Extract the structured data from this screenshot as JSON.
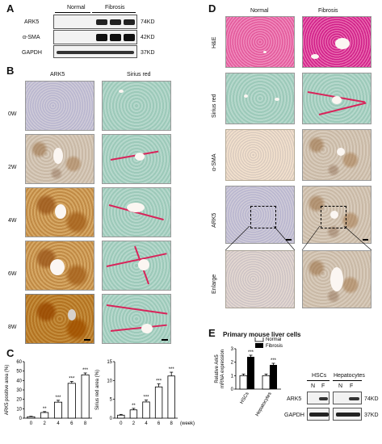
{
  "panels": {
    "A": "A",
    "B": "B",
    "C": "C",
    "D": "D",
    "E": "E"
  },
  "panelA": {
    "groups": [
      "Normal",
      "Fibrosis"
    ],
    "rows": [
      {
        "name": "ARK5",
        "kd": "74KD"
      },
      {
        "name": "α-SMA",
        "kd": "42KD"
      },
      {
        "name": "GAPDH",
        "kd": "37KD"
      }
    ]
  },
  "panelB": {
    "cols": [
      "ARK5",
      "Sirius red"
    ],
    "rows": [
      "0W",
      "2W",
      "4W",
      "6W",
      "8W"
    ]
  },
  "panelC": {
    "chart_data": [
      {
        "type": "bar",
        "ylabel": "ARK5 positive area (%)",
        "ylim": [
          0,
          60
        ],
        "yticks": [
          0,
          10,
          20,
          30,
          40,
          50,
          60
        ],
        "categories": [
          "0",
          "2",
          "4",
          "6",
          "8"
        ],
        "values": [
          1.5,
          6,
          17,
          37,
          46
        ],
        "errors": [
          0.5,
          1,
          2,
          2,
          2
        ],
        "stars": [
          "",
          "**",
          "***",
          "***",
          "***"
        ]
      },
      {
        "type": "bar",
        "ylabel": "Sirius red area (%)",
        "ylim": [
          0,
          15
        ],
        "yticks": [
          0,
          5,
          10,
          15
        ],
        "categories": [
          "0",
          "2",
          "4",
          "6",
          "8"
        ],
        "values": [
          0.8,
          2.2,
          4.3,
          8.3,
          11.2
        ],
        "errors": [
          0.2,
          0.4,
          0.5,
          0.8,
          1
        ],
        "stars": [
          "",
          "**",
          "***",
          "***",
          "***"
        ],
        "xlabel": "(week)"
      }
    ]
  },
  "panelD": {
    "cols": [
      "Normal",
      "Fibrosis"
    ],
    "rows": [
      "H&E",
      "Sirius red",
      "α-SMA",
      "ARK5",
      "Enlarge"
    ]
  },
  "panelE": {
    "title": "Primary mouse liver cells",
    "chart_data": {
      "type": "bar",
      "ylabel": "Relative Ark5\nmRNA expression",
      "ylim": [
        0,
        3
      ],
      "yticks": [
        0,
        1,
        2,
        3
      ],
      "categories": [
        "HSCs",
        "Hepatocytes"
      ],
      "series": [
        {
          "name": "Normal",
          "values": [
            1.0,
            1.0
          ]
        },
        {
          "name": "Fibrosis",
          "values": [
            2.4,
            1.8
          ]
        }
      ],
      "stars": [
        [
          "",
          "***"
        ],
        [
          "",
          "***"
        ]
      ]
    },
    "blot": {
      "groups": [
        "HSCs",
        "Hepatocytes"
      ],
      "lanes": [
        "N",
        "F",
        "N",
        "F"
      ],
      "rows": [
        {
          "name": "ARK5",
          "kd": "74KD"
        },
        {
          "name": "GAPDH",
          "kd": "37KD"
        }
      ]
    }
  }
}
